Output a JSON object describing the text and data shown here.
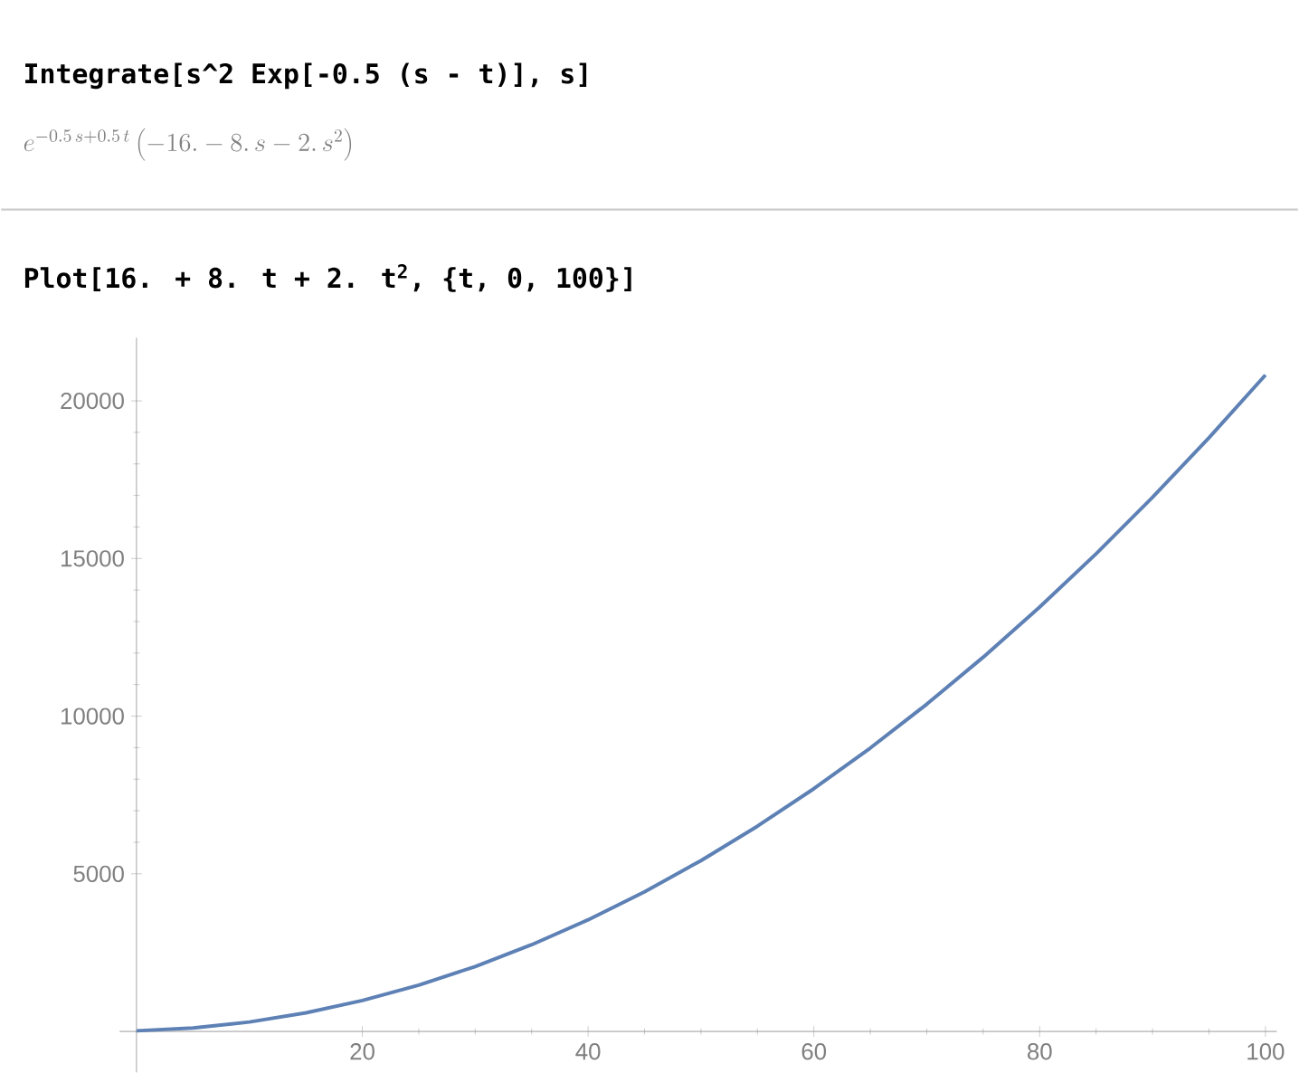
{
  "chart_data": {
    "type": "line",
    "annotations": [
      "Integrate[s^2 Exp[-0.5 (s - t)], s]",
      "e^{-0.5\\,s+0.5\\,t}\\left(-16.-8.\\,s-2.\\,s^{2}\\right)",
      "Plot[16. + 8. t + 2. t$^{2}$, {t, 0, 100}]"
    ],
    "x": [
      0,
      5,
      10,
      15,
      20,
      25,
      30,
      35,
      40,
      45,
      50,
      55,
      60,
      65,
      70,
      75,
      80,
      85,
      90,
      95,
      100
    ],
    "series": [
      {
        "color": "#5e81b5",
        "values": [
          20,
          110,
          300,
          590,
          980,
          1470,
          2060,
          2750,
          3540,
          4430,
          5420,
          6510,
          7700,
          8990,
          10380,
          11870,
          13460,
          15150,
          16940,
          18830,
          20820
        ]
      }
    ],
    "xlim": [
      -1.5,
      101
    ],
    "ylim": [
      -1300,
      22000
    ],
    "xticks": [
      20,
      40,
      60,
      80,
      100
    ],
    "yticks": [
      5000,
      10000,
      15000,
      20000
    ],
    "grid": false,
    "marker": "none",
    "line_style": "solid"
  }
}
